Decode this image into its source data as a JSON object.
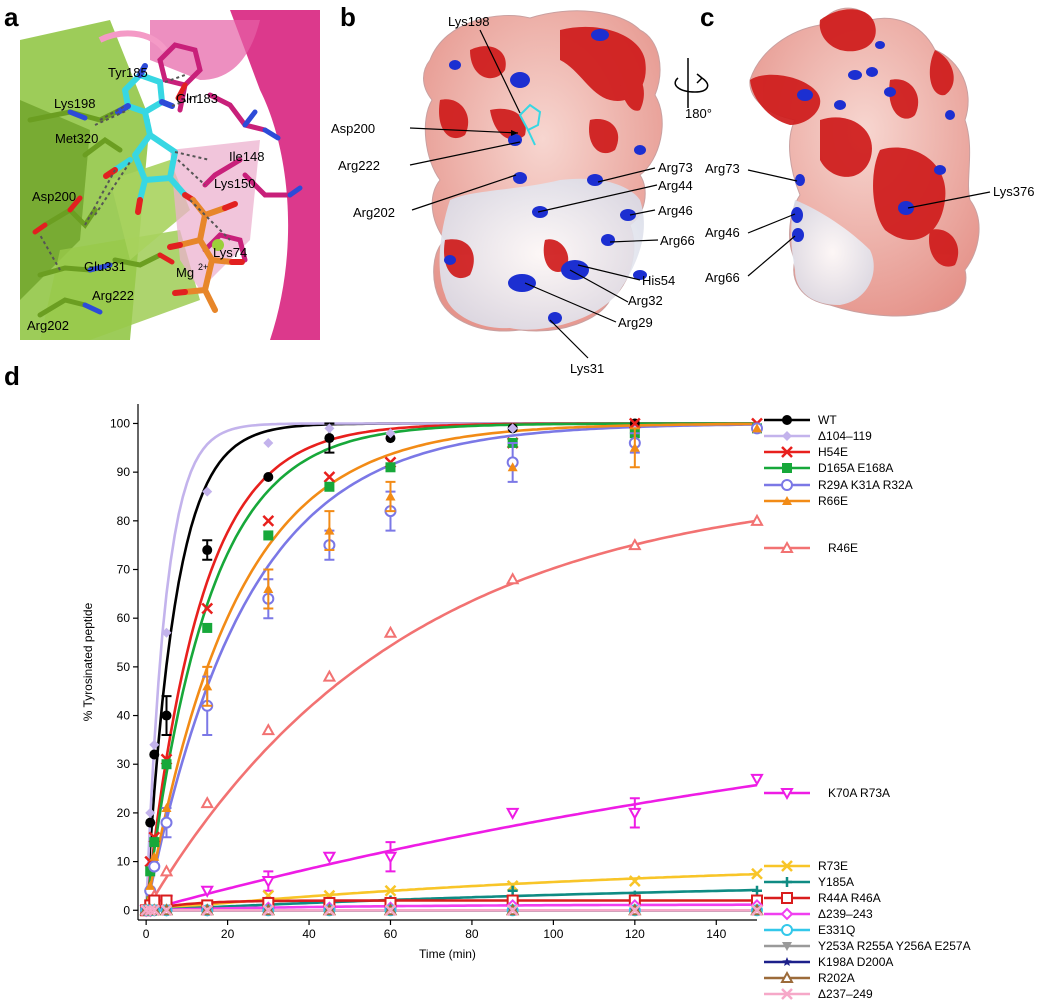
{
  "panels": {
    "a": "a",
    "b": "b",
    "c": "c",
    "d": "d"
  },
  "panel_a": {
    "residues": [
      "Tyr185",
      "Gln183",
      "Lys198",
      "Met320",
      "Ile148",
      "Lys150",
      "Asp200",
      "Lys74",
      "Glu331",
      "Arg222",
      "Arg202"
    ],
    "ion": "Mg",
    "ion_charge": "2+",
    "colors": {
      "green": "#7fb532",
      "magenta": "#d8237f",
      "cyan": "#3ad6e0",
      "orange": "#e7862a"
    }
  },
  "panel_b": {
    "labels": [
      "Lys198",
      "Asp200",
      "Arg222",
      "Arg202",
      "Arg73",
      "Arg44",
      "Arg46",
      "Arg66",
      "His54",
      "Arg32",
      "Arg29",
      "Lys31"
    ],
    "rotation": "180°"
  },
  "panel_c": {
    "labels": [
      "Arg73",
      "Lys376",
      "Arg46",
      "Arg66"
    ]
  },
  "chart_data": {
    "type": "line",
    "xlabel": "Time (min)",
    "ylabel": "% Tyrosinated  peptide",
    "xlim": [
      -2,
      150
    ],
    "ylim": [
      -2,
      104
    ],
    "xticks": [
      0,
      20,
      40,
      60,
      80,
      100,
      120,
      140
    ],
    "yticks": [
      0,
      10,
      20,
      30,
      40,
      50,
      60,
      70,
      80,
      90,
      100
    ],
    "x": [
      0,
      1,
      2,
      5,
      15,
      30,
      45,
      60,
      90,
      120,
      150
    ],
    "legend_placement": "right",
    "series": [
      {
        "name": "WT",
        "color": "#000000",
        "marker": "circle-filled",
        "values": [
          0,
          18,
          32,
          40,
          74,
          89,
          97,
          97,
          99,
          100,
          null
        ],
        "errors": [
          0,
          0,
          0,
          4,
          2,
          0,
          3,
          0,
          0,
          0,
          0
        ],
        "fit": [
          1,
          0.14
        ]
      },
      {
        "name": "Δ104–119",
        "color": "#c3b3ec",
        "marker": "diamond-filled",
        "values": [
          0,
          20,
          34,
          57,
          86,
          96,
          99,
          98,
          99,
          99,
          null
        ],
        "errors": [
          0,
          0,
          0,
          0,
          0,
          0,
          0,
          0,
          0,
          0,
          0
        ],
        "fit": [
          1,
          0.21
        ]
      },
      {
        "name": "H54E",
        "color": "#e8201d",
        "marker": "x",
        "values": [
          0,
          10,
          15,
          31,
          62,
          80,
          89,
          92,
          96,
          100,
          100
        ],
        "errors": [
          0,
          0,
          0,
          0,
          0,
          0,
          0,
          0,
          0,
          0,
          0
        ],
        "fit": [
          1,
          0.075
        ]
      },
      {
        "name": "D165A E168A",
        "color": "#17a83a",
        "marker": "square-filled",
        "values": [
          0,
          8,
          14,
          30,
          58,
          77,
          87,
          91,
          96,
          98,
          99
        ],
        "errors": [
          0,
          0,
          0,
          0,
          0,
          0,
          0,
          0,
          0,
          0,
          0
        ],
        "fit": [
          1,
          0.066
        ]
      },
      {
        "name": "R29A K31A R32A",
        "color": "#7b78e6",
        "marker": "circle-open",
        "values": [
          0,
          4,
          9,
          18,
          42,
          64,
          75,
          82,
          92,
          96,
          99
        ],
        "errors": [
          0,
          0,
          0,
          3,
          6,
          4,
          3,
          4,
          4,
          2,
          0
        ],
        "fit": [
          1,
          0.041
        ]
      },
      {
        "name": "R66E",
        "color": "#f28b16",
        "marker": "triangle-up-filled",
        "values": [
          0,
          5,
          11,
          21,
          46,
          66,
          78,
          85,
          91,
          95,
          99
        ],
        "errors": [
          0,
          0,
          0,
          0,
          4,
          4,
          4,
          3,
          0,
          4,
          0
        ],
        "fit": [
          1,
          0.046
        ]
      },
      {
        "name": "R46E",
        "color": "#f27272",
        "marker": "triangle-up-open",
        "values": [
          0,
          1,
          3,
          8,
          22,
          37,
          48,
          57,
          68,
          75,
          80
        ],
        "errors": [
          0,
          0,
          0,
          0,
          0,
          0,
          0,
          0,
          0,
          0,
          0
        ],
        "fit": [
          0.88,
          0.016
        ]
      },
      {
        "name": "K70A R73A",
        "color": "#ee1ce5",
        "marker": "triangle-down-open",
        "values": [
          0,
          0,
          1,
          2,
          4,
          6,
          11,
          11,
          20,
          20,
          27
        ],
        "errors": [
          0,
          0,
          0,
          0,
          0,
          2,
          0,
          3,
          0,
          3,
          0
        ],
        "fit": [
          0.55,
          0.0042
        ]
      },
      {
        "name": "R73E",
        "color": "#f8c528",
        "marker": "x",
        "values": [
          0,
          0,
          0,
          1,
          1,
          3,
          3,
          4,
          5,
          6,
          7.5
        ],
        "errors": [
          0,
          0,
          0,
          0,
          0,
          0,
          0,
          0,
          0,
          0,
          0
        ],
        "fit": [
          0.11,
          0.0075
        ]
      },
      {
        "name": "Y185A",
        "color": "#0f8b83",
        "marker": "plus",
        "values": [
          0,
          0,
          0,
          0.5,
          1,
          1,
          1.5,
          2,
          4,
          3,
          4
        ],
        "errors": [
          0,
          0,
          0,
          0,
          0,
          0,
          0,
          0,
          0,
          0,
          0
        ],
        "fit": [
          0.07,
          0.006
        ]
      },
      {
        "name": "R44A R46A",
        "color": "#d91d1d",
        "marker": "square-open",
        "values": [
          0,
          1,
          2,
          2,
          1,
          1.5,
          1.5,
          1.5,
          2,
          2,
          2
        ],
        "errors": [
          0,
          0,
          0,
          0,
          0,
          0,
          0,
          0,
          0,
          0,
          0
        ],
        "fit": [
          0.02,
          0.1
        ]
      },
      {
        "name": "Δ239–243",
        "color": "#f03ff0",
        "marker": "diamond-open",
        "values": [
          0,
          0,
          0,
          0,
          0,
          0.5,
          0.5,
          0.5,
          1,
          1,
          1
        ],
        "errors": [
          0,
          0,
          0,
          0,
          0,
          0,
          0,
          0,
          0,
          0,
          0
        ],
        "fit": [
          0.012,
          0.02
        ]
      },
      {
        "name": "E331Q",
        "color": "#33c8ea",
        "marker": "circle-open",
        "values": [
          0,
          0,
          0,
          0,
          0,
          0,
          0,
          0,
          0,
          0,
          0
        ],
        "errors": [
          0,
          0,
          0,
          0,
          0,
          0,
          0,
          0,
          0,
          0,
          0
        ],
        "fit": [
          0,
          0.1
        ]
      },
      {
        "name": "Y253A R255A Y256A E257A",
        "color": "#9a9a9a",
        "marker": "triangle-down-filled",
        "values": [
          0,
          0,
          0,
          0,
          0,
          0,
          0,
          0,
          0,
          0,
          0
        ],
        "errors": [
          0,
          0,
          0,
          0,
          0,
          0,
          0,
          0,
          0,
          0,
          0
        ],
        "fit": [
          0,
          0.1
        ]
      },
      {
        "name": "K198A D200A",
        "color": "#1c1f8a",
        "marker": "star",
        "values": [
          0,
          0,
          0,
          0,
          0,
          0,
          0,
          0,
          0,
          0,
          0
        ],
        "errors": [
          0,
          0,
          0,
          0,
          0,
          0,
          0,
          0,
          0,
          0,
          0
        ],
        "fit": [
          0,
          0.1
        ]
      },
      {
        "name": "R202A",
        "color": "#9c6b3a",
        "marker": "triangle-up-open",
        "values": [
          0,
          0,
          0,
          0,
          0,
          0,
          0,
          0,
          0,
          0,
          0
        ],
        "errors": [
          0,
          0,
          0,
          0,
          0,
          0,
          0,
          0,
          0,
          0,
          0
        ],
        "fit": [
          0,
          0.1
        ]
      },
      {
        "name": "Δ237–249",
        "color": "#f6a8c8",
        "marker": "x",
        "values": [
          0,
          0,
          0,
          0,
          0,
          0,
          0,
          0,
          0,
          0,
          0
        ],
        "errors": [
          0,
          0,
          0,
          0,
          0,
          0,
          0,
          0,
          0,
          0,
          0
        ],
        "fit": [
          0,
          0.1
        ]
      }
    ]
  }
}
